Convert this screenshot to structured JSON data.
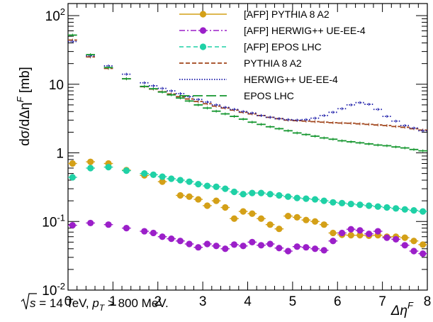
{
  "chart_data": {
    "type": "line",
    "ylabel_parts": {
      "prefix": "dσ/dΔη",
      "sup": "F",
      "suffix": " [mb]"
    },
    "xlabel_parts": {
      "main": "Δη",
      "sup": "F"
    },
    "caption": {
      "sqrt_s": "s",
      "energy": " = 14 TeV, ",
      "p": "p",
      "p_sub": "T",
      "cut": " > 800 MeV."
    },
    "xlim": [
      0,
      8
    ],
    "ylim": [
      0.01,
      150
    ],
    "y_scale": "log",
    "x_ticks": [
      "0",
      "1",
      "2",
      "3",
      "4",
      "5",
      "6",
      "7",
      "8"
    ],
    "y_ticks": [
      {
        "value": 0.01,
        "base": "10",
        "exp": "-2"
      },
      {
        "value": 0.1,
        "base": "10",
        "exp": "-1"
      },
      {
        "value": 1,
        "base": "1",
        "exp": ""
      },
      {
        "value": 10,
        "base": "10",
        "exp": ""
      },
      {
        "value": 100,
        "base": "10",
        "exp": "2"
      }
    ],
    "bin_width": 0.2,
    "legend_position": "top-right",
    "series": [
      {
        "name": "[AFP]  PYTHIA 8 A2",
        "color": "#d4a017",
        "style": "marker",
        "x": [
          0.1,
          0.5,
          0.9,
          1.3,
          1.7,
          2.1,
          2.5,
          2.7,
          2.9,
          3.1,
          3.3,
          3.5,
          3.7,
          3.9,
          4.1,
          4.3,
          4.5,
          4.7,
          4.9,
          5.1,
          5.3,
          5.5,
          5.7,
          5.9,
          6.1,
          6.3,
          6.5,
          6.7,
          6.9,
          7.1,
          7.3,
          7.5,
          7.7,
          7.9
        ],
        "y": [
          0.7,
          0.74,
          0.7,
          0.56,
          0.47,
          0.38,
          0.24,
          0.23,
          0.21,
          0.17,
          0.2,
          0.16,
          0.11,
          0.14,
          0.13,
          0.11,
          0.09,
          0.078,
          0.12,
          0.115,
          0.105,
          0.1,
          0.09,
          0.068,
          0.064,
          0.063,
          0.063,
          0.062,
          0.063,
          0.06,
          0.06,
          0.058,
          0.052,
          0.046
        ]
      },
      {
        "name": "[AFP]  HERWIG++ UE-EE-4",
        "color": "#9b1fc9",
        "style": "marker",
        "x": [
          0.1,
          0.5,
          0.9,
          1.3,
          1.7,
          1.9,
          2.1,
          2.3,
          2.5,
          2.7,
          2.9,
          3.1,
          3.3,
          3.5,
          3.7,
          3.9,
          4.1,
          4.3,
          4.5,
          4.7,
          4.9,
          5.1,
          5.3,
          5.5,
          5.7,
          5.9,
          6.1,
          6.3,
          6.5,
          6.7,
          6.9,
          7.1,
          7.3,
          7.5,
          7.7,
          7.9
        ],
        "y": [
          0.088,
          0.095,
          0.09,
          0.08,
          0.072,
          0.068,
          0.06,
          0.056,
          0.052,
          0.047,
          0.042,
          0.047,
          0.044,
          0.04,
          0.046,
          0.044,
          0.05,
          0.045,
          0.047,
          0.041,
          0.037,
          0.043,
          0.042,
          0.04,
          0.038,
          0.052,
          0.068,
          0.077,
          0.074,
          0.066,
          0.072,
          0.058,
          0.055,
          0.045,
          0.037,
          0.034
        ]
      },
      {
        "name": "[AFP]  EPOS LHC",
        "color": "#1fd1a6",
        "style": "marker",
        "x": [
          0.1,
          0.5,
          0.9,
          1.3,
          1.7,
          1.9,
          2.1,
          2.3,
          2.5,
          2.7,
          2.9,
          3.1,
          3.3,
          3.5,
          3.7,
          3.9,
          4.1,
          4.3,
          4.5,
          4.7,
          4.9,
          5.1,
          5.3,
          5.5,
          5.7,
          5.9,
          6.1,
          6.3,
          6.5,
          6.7,
          6.9,
          7.1,
          7.3,
          7.5,
          7.7,
          7.9
        ],
        "y": [
          0.44,
          0.6,
          0.62,
          0.55,
          0.5,
          0.48,
          0.45,
          0.42,
          0.4,
          0.38,
          0.35,
          0.33,
          0.32,
          0.3,
          0.27,
          0.25,
          0.26,
          0.26,
          0.25,
          0.24,
          0.23,
          0.22,
          0.215,
          0.21,
          0.2,
          0.19,
          0.185,
          0.18,
          0.175,
          0.17,
          0.165,
          0.16,
          0.155,
          0.15,
          0.145,
          0.14
        ]
      },
      {
        "name": "PYTHIA 8 A2",
        "color": "#a0441a",
        "style": "dashed",
        "x": [
          0.1,
          0.5,
          0.9,
          1.3,
          1.7,
          1.9,
          2.1,
          2.3,
          2.5,
          2.7,
          2.9,
          3.1,
          3.3,
          3.5,
          3.7,
          3.9,
          4.1,
          4.3,
          4.5,
          4.7,
          4.9,
          5.1,
          5.3,
          5.5,
          5.7,
          5.9,
          6.1,
          6.3,
          6.5,
          6.7,
          6.9,
          7.1,
          7.3,
          7.5,
          7.7,
          7.9
        ],
        "y": [
          44,
          25,
          17,
          12,
          9.2,
          8.5,
          7.8,
          7.2,
          6.6,
          6.1,
          5.6,
          5.2,
          4.8,
          4.5,
          4.2,
          3.9,
          3.7,
          3.5,
          3.3,
          3.15,
          3.0,
          2.95,
          2.9,
          2.85,
          2.8,
          2.75,
          2.72,
          2.7,
          2.65,
          2.6,
          2.55,
          2.5,
          2.42,
          2.36,
          2.25,
          2.15
        ]
      },
      {
        "name": "HERWIG++ UE-EE-4",
        "color": "#1a1aa8",
        "style": "dotted",
        "x": [
          0.1,
          0.5,
          0.9,
          1.3,
          1.7,
          1.9,
          2.1,
          2.3,
          2.5,
          2.7,
          2.9,
          3.1,
          3.3,
          3.5,
          3.7,
          3.9,
          4.1,
          4.3,
          4.5,
          4.7,
          4.9,
          5.1,
          5.3,
          5.5,
          5.7,
          5.9,
          6.1,
          6.3,
          6.5,
          6.7,
          6.9,
          7.1,
          7.3,
          7.5,
          7.7,
          7.9
        ],
        "y": [
          42,
          26,
          18.5,
          14,
          10.5,
          9.5,
          8.7,
          8.0,
          7.3,
          6.6,
          6.0,
          5.5,
          5.0,
          4.6,
          4.3,
          4.0,
          3.8,
          3.5,
          3.3,
          3.15,
          3.05,
          3.0,
          3.05,
          3.2,
          3.5,
          3.9,
          4.4,
          5.0,
          5.4,
          5.1,
          4.3,
          3.4,
          2.9,
          2.5,
          2.3,
          2.1
        ]
      },
      {
        "name": "EPOS LHC",
        "color": "#14962e",
        "style": "longdash",
        "x": [
          0.1,
          0.5,
          0.9,
          1.3,
          1.7,
          1.9,
          2.1,
          2.3,
          2.5,
          2.7,
          2.9,
          3.1,
          3.3,
          3.5,
          3.7,
          3.9,
          4.1,
          4.3,
          4.5,
          4.7,
          4.9,
          5.1,
          5.3,
          5.5,
          5.7,
          5.9,
          6.1,
          6.3,
          6.5,
          6.7,
          6.9,
          7.1,
          7.3,
          7.5,
          7.7,
          7.9
        ],
        "y": [
          52,
          27,
          17.5,
          12,
          9.3,
          8.6,
          7.7,
          7.0,
          6.3,
          5.7,
          5.0,
          4.5,
          4.05,
          3.7,
          3.4,
          3.1,
          2.8,
          2.6,
          2.4,
          2.25,
          2.1,
          1.95,
          1.85,
          1.75,
          1.65,
          1.58,
          1.5,
          1.45,
          1.4,
          1.35,
          1.3,
          1.27,
          1.22,
          1.18,
          1.12,
          1.07
        ]
      }
    ]
  }
}
